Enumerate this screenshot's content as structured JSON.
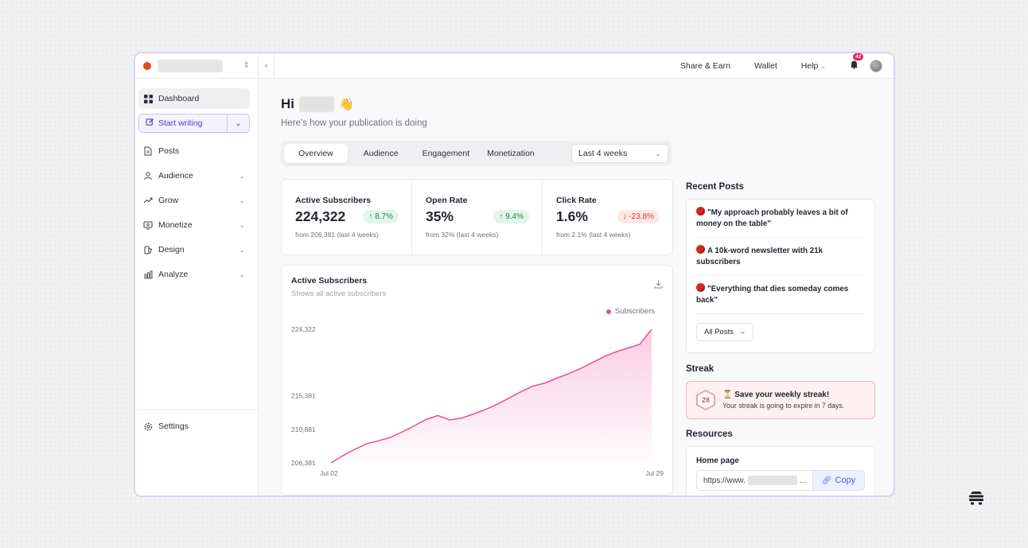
{
  "sidebar": {
    "items": [
      {
        "label": "Dashboard"
      },
      {
        "label": "Posts"
      },
      {
        "label": "Audience"
      },
      {
        "label": "Grow"
      },
      {
        "label": "Monetize"
      },
      {
        "label": "Design"
      },
      {
        "label": "Analyze"
      }
    ],
    "start_writing": "Start writing",
    "settings": "Settings"
  },
  "topbar": {
    "share_earn": "Share & Earn",
    "wallet": "Wallet",
    "help": "Help",
    "notification_count": "42"
  },
  "main": {
    "greeting": "Hi",
    "greeting_emoji": "👋",
    "subtitle": "Here's how your publication is doing",
    "tabs": [
      {
        "label": "Overview"
      },
      {
        "label": "Audience"
      },
      {
        "label": "Engagement"
      },
      {
        "label": "Monetization"
      }
    ],
    "range": "Last 4 weeks",
    "stats": [
      {
        "label": "Active Subscribers",
        "value": "224,322",
        "change": "↑ 8.7%",
        "from": "from 206,381 (last 4 weeks)"
      },
      {
        "label": "Open Rate",
        "value": "35%",
        "change": "↑ 9.4%",
        "from": "from 32% (last 4 weeks)"
      },
      {
        "label": "Click Rate",
        "value": "1.6%",
        "change": "↓ -23.8%",
        "from": "from 2.1% (last 4 weeks)"
      }
    ],
    "chart_title": "Active Subscribers",
    "chart_subtitle": "Shows all active subscribers"
  },
  "chart_data": {
    "type": "area",
    "title": "Active Subscribers",
    "series": [
      {
        "name": "Subscribers",
        "values": [
          206381,
          207350,
          208200,
          208950,
          209350,
          209800,
          210550,
          211350,
          212200,
          212750,
          212150,
          212400,
          212950,
          213550,
          214250,
          215100,
          215950,
          216700,
          217100,
          217750,
          218350,
          219050,
          219850,
          220650,
          221300,
          221800,
          222300,
          224322
        ]
      }
    ],
    "x_tick_labels": [
      "Jul 02",
      "Jul 29"
    ],
    "y_tick_labels": [
      "224,322",
      "215,381",
      "210,881",
      "206,381"
    ],
    "ylim": [
      206381,
      224322
    ],
    "color": "#e84c97",
    "legend": "top-right"
  },
  "right": {
    "recent_posts_title": "Recent Posts",
    "posts": [
      {
        "title": "\"My approach probably leaves a bit of money on the table\""
      },
      {
        "title": "A 10k-word newsletter with 21k subscribers"
      },
      {
        "title": "\"Everything that dies someday comes back\""
      }
    ],
    "all_posts": "All Posts",
    "streak_title": "Streak",
    "streak_count": "28",
    "streak_heading": "⏳ Save your weekly streak!",
    "streak_sub": "Your streak is going to expire in 7 days.",
    "resources_title": "Resources",
    "home_page_label": "Home page",
    "url_prefix": "https://www.",
    "url_suffix": "...",
    "copy": "Copy"
  }
}
